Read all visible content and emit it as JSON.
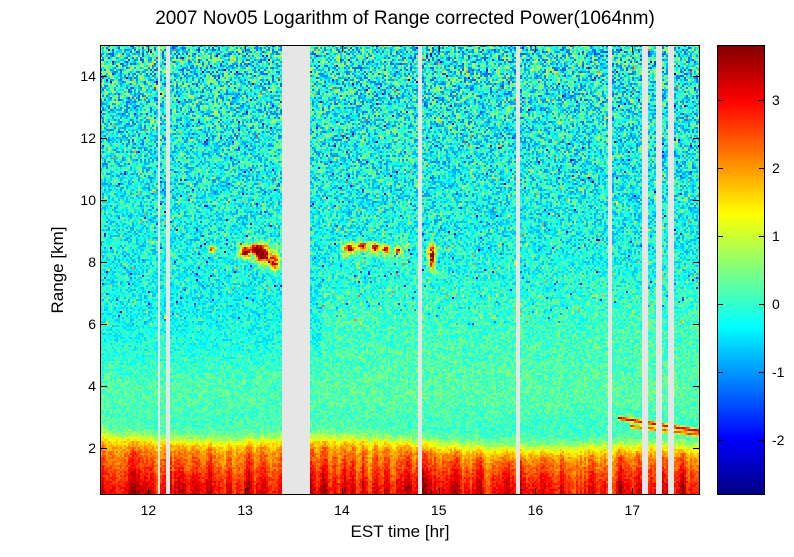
{
  "chart_data": {
    "type": "heatmap",
    "title": "2007 Nov05  Logarithm of Range corrected Power(1064nm)",
    "xlabel": "EST time [hr]",
    "ylabel": "Range [km]",
    "x_range": [
      11.5,
      17.7
    ],
    "y_range": [
      0.5,
      15
    ],
    "value_range": [
      -2.8,
      3.8
    ],
    "colormap": "jet",
    "xticks": [
      12,
      13,
      14,
      15,
      16,
      17
    ],
    "yticks": [
      2,
      4,
      6,
      8,
      10,
      12,
      14
    ],
    "colorbar_ticks": [
      3,
      2,
      1,
      0,
      -1,
      -2
    ],
    "background_value": -0.25,
    "noise": {
      "base_amp": 0.28,
      "alt_amp": 1.0,
      "alt_power": 1.7,
      "speckle_chance": 0.05,
      "speckle_amp": 2.0
    },
    "boundary_layer": {
      "top_km": 2.35,
      "top_drift_per_hr": -0.07,
      "peak_value": 2.4,
      "ground_extra": 1.0,
      "edge_sharpness_km": 0.16
    },
    "haze_layers": [
      {
        "h": 3.7,
        "dh": 1.4,
        "value": 0.45
      },
      {
        "h": 6.0,
        "dh": 1.6,
        "value": 0.3,
        "t_start": 13.8
      }
    ],
    "cirrus_band": {
      "h": 8.35,
      "dh": 0.3,
      "value": 0.5,
      "intervals": [
        [
          12.9,
          13.38
        ],
        [
          13.98,
          14.68
        ],
        [
          14.86,
          15.0
        ]
      ]
    },
    "clouds": [
      {
        "t": 12.66,
        "dt": 0.035,
        "h": 8.42,
        "dh": 0.1,
        "peak": 2.8
      },
      {
        "t": 13.0,
        "dt": 0.045,
        "h": 8.32,
        "dh": 0.16,
        "peak": 3.8
      },
      {
        "t": 13.1,
        "dt": 0.05,
        "h": 8.45,
        "dh": 0.14,
        "peak": 3.6
      },
      {
        "t": 13.18,
        "dt": 0.07,
        "h": 8.25,
        "dh": 0.28,
        "peak": 4.2
      },
      {
        "t": 13.3,
        "dt": 0.045,
        "h": 8.0,
        "dh": 0.22,
        "peak": 3.8
      },
      {
        "t": 14.08,
        "dt": 0.05,
        "h": 8.45,
        "dh": 0.13,
        "peak": 3.8
      },
      {
        "t": 14.21,
        "dt": 0.045,
        "h": 8.52,
        "dh": 0.12,
        "peak": 3.6
      },
      {
        "t": 14.34,
        "dt": 0.045,
        "h": 8.48,
        "dh": 0.12,
        "peak": 3.6
      },
      {
        "t": 14.46,
        "dt": 0.04,
        "h": 8.42,
        "dh": 0.11,
        "peak": 3.4
      },
      {
        "t": 14.58,
        "dt": 0.025,
        "h": 8.38,
        "dh": 0.1,
        "peak": 3.0
      },
      {
        "t": 14.93,
        "dt": 0.03,
        "h": 8.2,
        "dh": 0.38,
        "peak": 4.0
      }
    ],
    "descending_layers": [
      {
        "t0": 16.86,
        "t1": 17.7,
        "h0": 2.98,
        "slope": -0.5,
        "peak": 3.2
      },
      {
        "t0": 16.98,
        "t1": 17.7,
        "h0": 2.72,
        "slope": -0.4,
        "peak": 2.4
      }
    ],
    "gaps": [
      [
        12.09,
        12.13
      ],
      [
        12.19,
        12.23
      ],
      [
        13.39,
        13.68
      ],
      [
        14.78,
        14.83
      ],
      [
        15.8,
        15.85
      ],
      [
        16.74,
        16.79
      ],
      [
        17.1,
        17.17
      ],
      [
        17.25,
        17.31
      ],
      [
        17.37,
        17.43
      ]
    ],
    "gap_color_rgb": [
      230,
      230,
      230
    ]
  }
}
